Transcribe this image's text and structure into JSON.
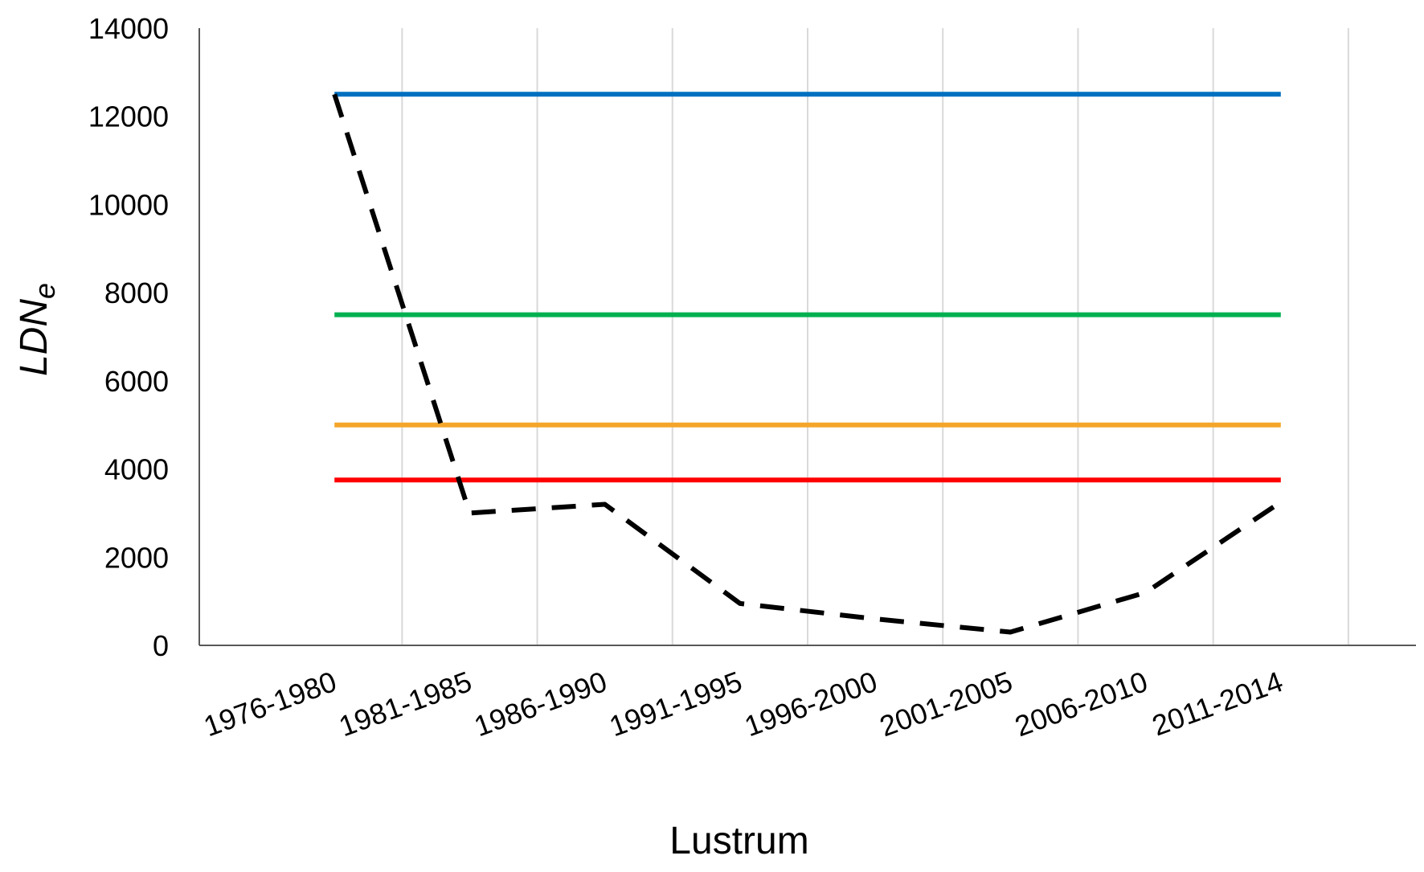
{
  "chart_data": {
    "type": "line",
    "xlabel": "Lustrum",
    "ylabel_main": "LDN",
    "ylabel_sub": "e",
    "categories": [
      "1976-1980",
      "1981-1985",
      "1986-1990",
      "1991-1995",
      "1996-2000",
      "2001-2005",
      "2006-2010",
      "2011-2014"
    ],
    "ylim": [
      0,
      14000
    ],
    "yticks": [
      0,
      2000,
      4000,
      6000,
      8000,
      10000,
      12000,
      14000
    ],
    "grid": "vertical",
    "legend": "none",
    "series": [
      {
        "color": "#0070C0",
        "style": "solid",
        "values": [
          12500,
          12500,
          12500,
          12500,
          12500,
          12500,
          12500,
          12500
        ]
      },
      {
        "color": "#00B050",
        "style": "solid",
        "values": [
          7500,
          7500,
          7500,
          7500,
          7500,
          7500,
          7500,
          7500
        ]
      },
      {
        "color": "#F4A62A",
        "style": "solid",
        "values": [
          5000,
          5000,
          5000,
          5000,
          5000,
          5000,
          5000,
          5000
        ]
      },
      {
        "color": "#FF0000",
        "style": "solid",
        "values": [
          3750,
          3750,
          3750,
          3750,
          3750,
          3750,
          3750,
          3750
        ]
      },
      {
        "color": "#000000",
        "style": "dashed",
        "values": [
          12500,
          3000,
          3200,
          950,
          600,
          300,
          1200,
          3250
        ]
      }
    ]
  }
}
